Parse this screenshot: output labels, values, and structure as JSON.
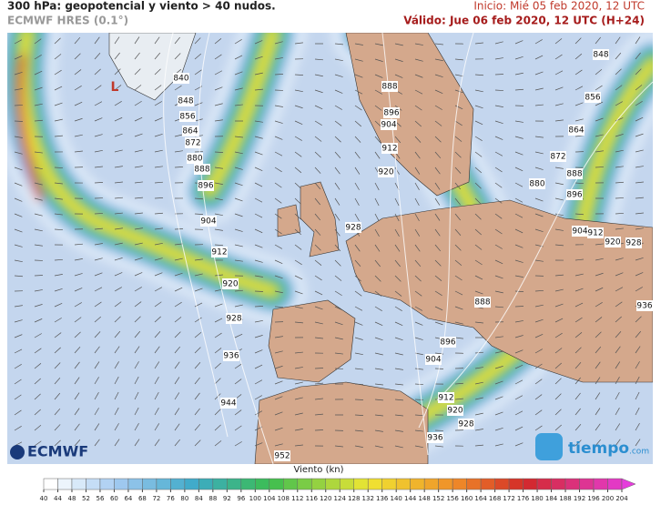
{
  "header": {
    "title": "300 hPa: geopotencial y viento > 40 nudos.",
    "model": "ECMWF HRES (0.1°)",
    "init": "Inicio: Mié 05 feb 2020, 12 UTC",
    "valid": "Válido: Jue 06 feb 2020, 12 UTC (H+24)"
  },
  "map": {
    "low_label": "L",
    "contour_labels": [
      840,
      848,
      856,
      864,
      872,
      880,
      888,
      896,
      904,
      912,
      920,
      928,
      936,
      944,
      952,
      888,
      896,
      904,
      912,
      920,
      928,
      888,
      896,
      904,
      912,
      920,
      928,
      936,
      848,
      856,
      864,
      872,
      880,
      888,
      896,
      904,
      912,
      920,
      928,
      936
    ]
  },
  "colorbar": {
    "label": "Viento (kn)",
    "ticks": [
      40,
      44,
      48,
      52,
      56,
      60,
      64,
      68,
      72,
      76,
      80,
      84,
      88,
      92,
      96,
      100,
      104,
      108,
      112,
      116,
      120,
      124,
      128,
      132,
      136,
      140,
      144,
      148,
      152,
      156,
      160,
      164,
      168,
      172,
      176,
      180,
      184,
      188,
      192,
      196,
      200,
      204
    ]
  },
  "logos": {
    "ecmwf": "ECMWF",
    "tiempo": "tiempo",
    "tiempo_suffix": ".com"
  }
}
